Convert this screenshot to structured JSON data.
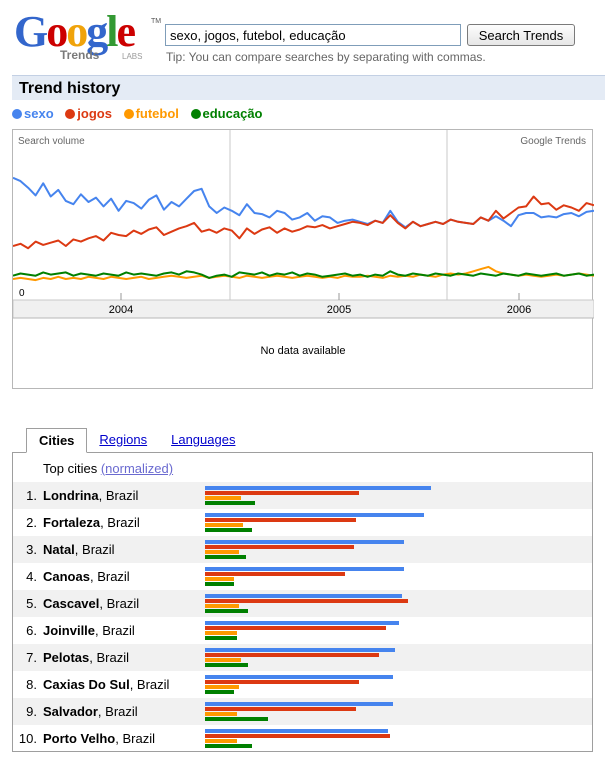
{
  "logo": {
    "word": "Google",
    "sub": "Trends",
    "labs": "LABS",
    "tm": "TM"
  },
  "search": {
    "value": "sexo, jogos, futebol, educação",
    "button": "Search Trends",
    "tip": "Tip: You can compare searches by separating with commas."
  },
  "trend_history": {
    "title": "Trend history"
  },
  "colors": {
    "sexo": "#4684ee",
    "jogos": "#dc3912",
    "futebol": "#ff9900",
    "educacao": "#008000"
  },
  "legend": [
    {
      "label": "sexo",
      "color": "#4684ee"
    },
    {
      "label": "jogos",
      "color": "#dc3912"
    },
    {
      "label": "futebol",
      "color": "#ff9900"
    },
    {
      "label": "educação",
      "color": "#008000"
    }
  ],
  "chart_data": {
    "type": "line",
    "title": "",
    "ylabel": "Search volume",
    "watermark": "Google Trends",
    "y_zero_label": "0",
    "x_labels": [
      "2004",
      "2005",
      "2006"
    ],
    "news_text": "No data available",
    "ylim": [
      0,
      1
    ],
    "series": [
      {
        "name": "sexo",
        "values": [
          1.02,
          0.99,
          0.93,
          0.86,
          0.97,
          0.85,
          0.91,
          0.81,
          0.78,
          0.87,
          0.8,
          0.84,
          0.76,
          0.83,
          0.72,
          0.81,
          0.79,
          0.74,
          0.82,
          0.86,
          0.73,
          0.8,
          0.76,
          0.83,
          0.9,
          0.92,
          0.76,
          0.7,
          0.75,
          0.72,
          0.68,
          0.78,
          0.7,
          0.69,
          0.66,
          0.72,
          0.7,
          0.64,
          0.66,
          0.7,
          0.63,
          0.67,
          0.66,
          0.61,
          0.63,
          0.64,
          0.62,
          0.6,
          0.63,
          0.61,
          0.72,
          0.62,
          0.57,
          0.62,
          0.58,
          0.6,
          0.62,
          0.6,
          0.64,
          0.62,
          0.61,
          0.6,
          0.66,
          0.63,
          0.67,
          0.63,
          0.58,
          0.68,
          0.7,
          0.7,
          0.66,
          0.67,
          0.66,
          0.69,
          0.7,
          0.67,
          0.71,
          0.72
        ]
      },
      {
        "name": "jogos",
        "values": [
          0.4,
          0.42,
          0.38,
          0.44,
          0.41,
          0.43,
          0.45,
          0.4,
          0.46,
          0.44,
          0.47,
          0.49,
          0.45,
          0.52,
          0.5,
          0.49,
          0.54,
          0.51,
          0.55,
          0.57,
          0.5,
          0.53,
          0.56,
          0.58,
          0.61,
          0.53,
          0.55,
          0.52,
          0.56,
          0.54,
          0.47,
          0.56,
          0.51,
          0.55,
          0.57,
          0.52,
          0.56,
          0.53,
          0.55,
          0.58,
          0.57,
          0.59,
          0.56,
          0.58,
          0.6,
          0.62,
          0.61,
          0.59,
          0.63,
          0.61,
          0.68,
          0.61,
          0.56,
          0.62,
          0.58,
          0.6,
          0.62,
          0.6,
          0.64,
          0.62,
          0.61,
          0.6,
          0.66,
          0.63,
          0.72,
          0.65,
          0.7,
          0.75,
          0.76,
          0.85,
          0.78,
          0.79,
          0.73,
          0.77,
          0.75,
          0.72,
          0.79,
          0.77
        ]
      },
      {
        "name": "futebol",
        "values": [
          0.1,
          0.11,
          0.1,
          0.09,
          0.11,
          0.1,
          0.12,
          0.1,
          0.11,
          0.1,
          0.12,
          0.11,
          0.1,
          0.12,
          0.11,
          0.1,
          0.11,
          0.12,
          0.1,
          0.11,
          0.12,
          0.13,
          0.12,
          0.11,
          0.12,
          0.13,
          0.11,
          0.12,
          0.13,
          0.12,
          0.11,
          0.13,
          0.12,
          0.11,
          0.12,
          0.13,
          0.12,
          0.11,
          0.12,
          0.13,
          0.12,
          0.11,
          0.12,
          0.11,
          0.13,
          0.12,
          0.12,
          0.13,
          0.12,
          0.11,
          0.13,
          0.12,
          0.13,
          0.12,
          0.14,
          0.13,
          0.12,
          0.14,
          0.15,
          0.14,
          0.15,
          0.17,
          0.19,
          0.21,
          0.17,
          0.15,
          0.14,
          0.13,
          0.14,
          0.13,
          0.12,
          0.13,
          0.14,
          0.13,
          0.14,
          0.15,
          0.14,
          0.13
        ]
      },
      {
        "name": "educação",
        "values": [
          0.13,
          0.15,
          0.14,
          0.13,
          0.16,
          0.14,
          0.15,
          0.16,
          0.13,
          0.15,
          0.14,
          0.13,
          0.15,
          0.14,
          0.13,
          0.16,
          0.14,
          0.15,
          0.14,
          0.13,
          0.15,
          0.16,
          0.14,
          0.17,
          0.16,
          0.14,
          0.11,
          0.13,
          0.14,
          0.12,
          0.16,
          0.15,
          0.14,
          0.16,
          0.13,
          0.15,
          0.14,
          0.16,
          0.13,
          0.15,
          0.14,
          0.12,
          0.13,
          0.14,
          0.15,
          0.13,
          0.14,
          0.12,
          0.14,
          0.13,
          0.17,
          0.14,
          0.13,
          0.15,
          0.14,
          0.13,
          0.15,
          0.14,
          0.13,
          0.15,
          0.14,
          0.13,
          0.15,
          0.14,
          0.13,
          0.15,
          0.14,
          0.13,
          0.15,
          0.14,
          0.13,
          0.14,
          0.15,
          0.13,
          0.14,
          0.15,
          0.13,
          0.14
        ]
      }
    ]
  },
  "tabs": [
    {
      "label": "Cities",
      "active": true
    },
    {
      "label": "Regions",
      "active": false
    },
    {
      "label": "Languages",
      "active": false
    }
  ],
  "cities": {
    "heading": "Top cities",
    "normalized": "(normalized)",
    "bar_scale_max": 100,
    "rows": [
      {
        "rank": "1.",
        "city": "Londrina",
        "country": ", Brazil",
        "values": [
          100,
          68,
          16,
          22
        ]
      },
      {
        "rank": "2.",
        "city": "Fortaleza",
        "country": ", Brazil",
        "values": [
          97,
          67,
          17,
          21
        ]
      },
      {
        "rank": "3.",
        "city": "Natal",
        "country": ", Brazil",
        "values": [
          88,
          66,
          15,
          18
        ]
      },
      {
        "rank": "4.",
        "city": "Canoas",
        "country": ", Brazil",
        "values": [
          88,
          62,
          13,
          13
        ]
      },
      {
        "rank": "5.",
        "city": "Cascavel",
        "country": ", Brazil",
        "values": [
          87,
          90,
          15,
          19
        ]
      },
      {
        "rank": "6.",
        "city": "Joinville",
        "country": ", Brazil",
        "values": [
          86,
          80,
          14,
          14
        ]
      },
      {
        "rank": "7.",
        "city": "Pelotas",
        "country": ", Brazil",
        "values": [
          84,
          77,
          16,
          19
        ]
      },
      {
        "rank": "8.",
        "city": "Caxias Do Sul",
        "country": ", Brazil",
        "values": [
          83,
          68,
          15,
          13
        ]
      },
      {
        "rank": "9.",
        "city": "Salvador",
        "country": ", Brazil",
        "values": [
          83,
          67,
          14,
          28
        ]
      },
      {
        "rank": "10.",
        "city": "Porto Velho",
        "country": ", Brazil",
        "values": [
          81,
          82,
          14,
          21
        ]
      }
    ]
  }
}
